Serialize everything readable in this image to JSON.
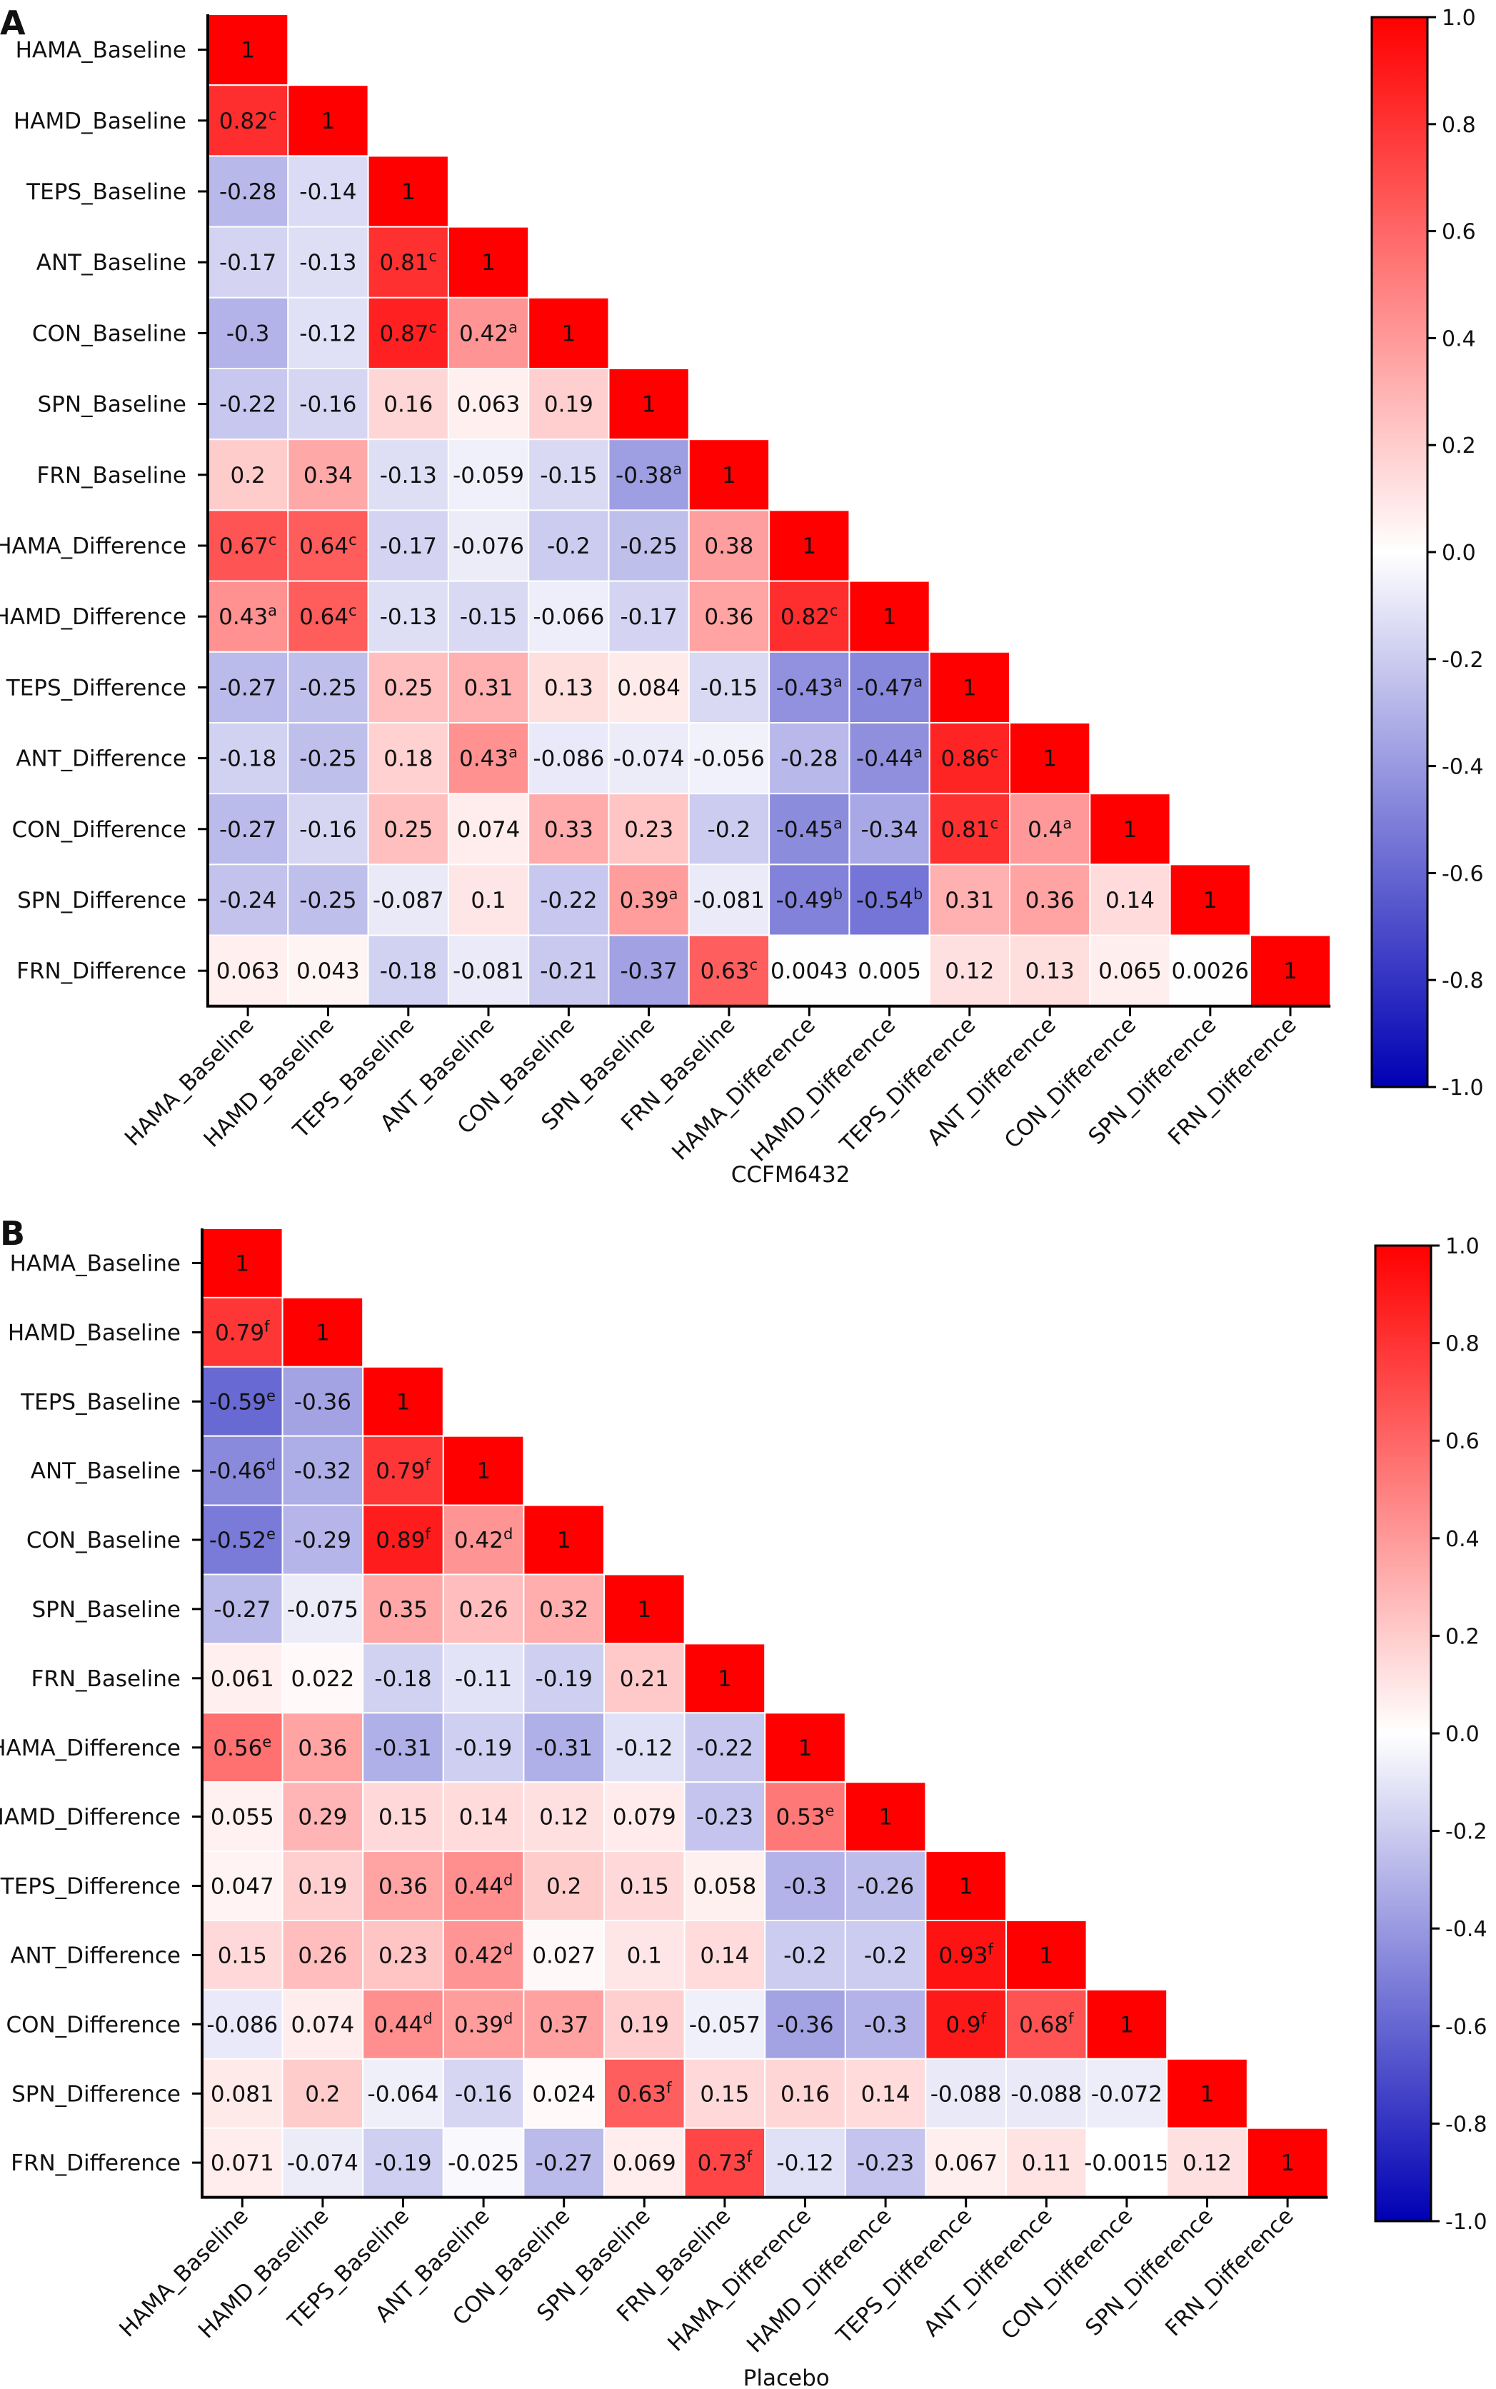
{
  "chart_data": [
    {
      "type": "heatmap",
      "panel_label": "A",
      "xlabel": "CCFM6432",
      "variables": [
        "HAMA_Baseline",
        "HAMD_Baseline",
        "TEPS_Baseline",
        "ANT_Baseline",
        "CON_Baseline",
        "SPN_Baseline",
        "FRN_Baseline",
        "HAMA_Difference",
        "HAMD_Difference",
        "TEPS_Difference",
        "ANT_Difference",
        "CON_Difference",
        "SPN_Difference",
        "FRN_Difference"
      ],
      "values": [
        [
          1
        ],
        [
          0.82,
          1
        ],
        [
          -0.28,
          -0.14,
          1
        ],
        [
          -0.17,
          -0.13,
          0.81,
          1
        ],
        [
          -0.3,
          -0.12,
          0.87,
          0.42,
          1
        ],
        [
          -0.22,
          -0.16,
          0.16,
          0.063,
          0.19,
          1
        ],
        [
          0.2,
          0.34,
          -0.13,
          -0.059,
          -0.15,
          -0.38,
          1
        ],
        [
          0.67,
          0.64,
          -0.17,
          -0.076,
          -0.2,
          -0.25,
          0.38,
          1
        ],
        [
          0.43,
          0.64,
          -0.13,
          -0.15,
          -0.066,
          -0.17,
          0.36,
          0.82,
          1
        ],
        [
          -0.27,
          -0.25,
          0.25,
          0.31,
          0.13,
          0.084,
          -0.15,
          -0.43,
          -0.47,
          1
        ],
        [
          -0.18,
          -0.25,
          0.18,
          0.43,
          -0.086,
          -0.074,
          -0.056,
          -0.28,
          -0.44,
          0.86,
          1
        ],
        [
          -0.27,
          -0.16,
          0.25,
          0.074,
          0.33,
          0.23,
          -0.2,
          -0.45,
          -0.34,
          0.81,
          0.4,
          1
        ],
        [
          -0.24,
          -0.25,
          -0.087,
          0.1,
          -0.22,
          0.39,
          -0.081,
          -0.49,
          -0.54,
          0.31,
          0.36,
          0.14,
          1
        ],
        [
          0.063,
          0.043,
          -0.18,
          -0.081,
          -0.21,
          -0.37,
          0.63,
          0.0043,
          0.005,
          0.12,
          0.13,
          0.065,
          0.0026,
          1
        ]
      ],
      "labels": [
        [
          "1"
        ],
        [
          "0.82",
          "1"
        ],
        [
          "-0.28",
          "-0.14",
          "1"
        ],
        [
          "-0.17",
          "-0.13",
          "0.81",
          "1"
        ],
        [
          "-0.3",
          "-0.12",
          "0.87",
          "0.42",
          "1"
        ],
        [
          "-0.22",
          "-0.16",
          "0.16",
          "0.063",
          "0.19",
          "1"
        ],
        [
          "0.2",
          "0.34",
          "-0.13",
          "-0.059",
          "-0.15",
          "-0.38",
          "1"
        ],
        [
          "0.67",
          "0.64",
          "-0.17",
          "-0.076",
          "-0.2",
          "-0.25",
          "0.38",
          "1"
        ],
        [
          "0.43",
          "0.64",
          "-0.13",
          "-0.15",
          "-0.066",
          "-0.17",
          "0.36",
          "0.82",
          "1"
        ],
        [
          "-0.27",
          "-0.25",
          "0.25",
          "0.31",
          "0.13",
          "0.084",
          "-0.15",
          "-0.43",
          "-0.47",
          "1"
        ],
        [
          "-0.18",
          "-0.25",
          "0.18",
          "0.43",
          "-0.086",
          "-0.074",
          "-0.056",
          "-0.28",
          "-0.44",
          "0.86",
          "1"
        ],
        [
          "-0.27",
          "-0.16",
          "0.25",
          "0.074",
          "0.33",
          "0.23",
          "-0.2",
          "-0.45",
          "-0.34",
          "0.81",
          "0.4",
          "1"
        ],
        [
          "-0.24",
          "-0.25",
          "-0.087",
          "0.1",
          "-0.22",
          "0.39",
          "-0.081",
          "-0.49",
          "-0.54",
          "0.31",
          "0.36",
          "0.14",
          "1"
        ],
        [
          "0.063",
          "0.043",
          "-0.18",
          "-0.081",
          "-0.21",
          "-0.37",
          "0.63",
          "0.0043",
          "0.005",
          "0.12",
          "0.13",
          "0.065",
          "0.0026",
          "1"
        ]
      ],
      "superscripts": [
        [
          ""
        ],
        [
          "c",
          ""
        ],
        [
          "",
          "",
          ""
        ],
        [
          "",
          "",
          "c",
          ""
        ],
        [
          "",
          "",
          "c",
          "a",
          ""
        ],
        [
          "",
          "",
          "",
          "",
          "",
          ""
        ],
        [
          "",
          "",
          "",
          "",
          "",
          "a",
          ""
        ],
        [
          "c",
          "c",
          "",
          "",
          "",
          "",
          "",
          ""
        ],
        [
          "a",
          "c",
          "",
          "",
          "",
          "",
          "",
          "c",
          ""
        ],
        [
          "",
          "",
          "",
          "",
          "",
          "",
          "",
          "a",
          "a",
          ""
        ],
        [
          "",
          "",
          "",
          "a",
          "",
          "",
          "",
          "",
          "a",
          "c",
          ""
        ],
        [
          "",
          "",
          "",
          "",
          "",
          "",
          "",
          "a",
          "",
          "c",
          "a",
          ""
        ],
        [
          "",
          "",
          "",
          "",
          "",
          "a",
          "",
          "b",
          "b",
          "",
          "",
          "",
          ""
        ],
        [
          "",
          "",
          "",
          "",
          "",
          "",
          "c",
          "",
          "",
          "",
          "",
          "",
          "",
          ""
        ]
      ],
      "colorbar": {
        "min": -1.0,
        "max": 1.0,
        "ticks": [
          "1.0",
          "0.8",
          "0.6",
          "0.4",
          "0.2",
          "0.0",
          "-0.2",
          "-0.4",
          "-0.6",
          "-0.8",
          "-1.0"
        ],
        "low_color": "#0000b4",
        "mid_color": "#ffffff",
        "high_color": "#ff0000"
      }
    },
    {
      "type": "heatmap",
      "panel_label": "B",
      "xlabel": "Placebo",
      "variables": [
        "HAMA_Baseline",
        "HAMD_Baseline",
        "TEPS_Baseline",
        "ANT_Baseline",
        "CON_Baseline",
        "SPN_Baseline",
        "FRN_Baseline",
        "HAMA_Difference",
        "HAMD_Difference",
        "TEPS_Difference",
        "ANT_Difference",
        "CON_Difference",
        "SPN_Difference",
        "FRN_Difference"
      ],
      "values": [
        [
          1
        ],
        [
          0.79,
          1
        ],
        [
          -0.59,
          -0.36,
          1
        ],
        [
          -0.46,
          -0.32,
          0.79,
          1
        ],
        [
          -0.52,
          -0.29,
          0.89,
          0.42,
          1
        ],
        [
          -0.27,
          -0.075,
          0.35,
          0.26,
          0.32,
          1
        ],
        [
          0.061,
          0.022,
          -0.18,
          -0.11,
          -0.19,
          0.21,
          1
        ],
        [
          0.56,
          0.36,
          -0.31,
          -0.19,
          -0.31,
          -0.12,
          -0.22,
          1
        ],
        [
          0.055,
          0.29,
          0.15,
          0.14,
          0.12,
          0.079,
          -0.23,
          0.53,
          1
        ],
        [
          0.047,
          0.19,
          0.36,
          0.44,
          0.2,
          0.15,
          0.058,
          -0.3,
          -0.26,
          1
        ],
        [
          0.15,
          0.26,
          0.23,
          0.42,
          0.027,
          0.1,
          0.14,
          -0.2,
          -0.2,
          0.93,
          1
        ],
        [
          -0.086,
          0.074,
          0.44,
          0.39,
          0.37,
          0.19,
          -0.057,
          -0.36,
          -0.3,
          0.9,
          0.68,
          1
        ],
        [
          0.081,
          0.2,
          -0.064,
          -0.16,
          0.024,
          0.63,
          0.15,
          0.16,
          0.14,
          -0.088,
          -0.088,
          -0.072,
          1
        ],
        [
          0.071,
          -0.074,
          -0.19,
          -0.025,
          -0.27,
          0.069,
          0.73,
          -0.12,
          -0.23,
          0.067,
          0.11,
          -0.0015,
          0.12,
          1
        ]
      ],
      "labels": [
        [
          "1"
        ],
        [
          "0.79",
          "1"
        ],
        [
          "-0.59",
          "-0.36",
          "1"
        ],
        [
          "-0.46",
          "-0.32",
          "0.79",
          "1"
        ],
        [
          "-0.52",
          "-0.29",
          "0.89",
          "0.42",
          "1"
        ],
        [
          "-0.27",
          "-0.075",
          "0.35",
          "0.26",
          "0.32",
          "1"
        ],
        [
          "0.061",
          "0.022",
          "-0.18",
          "-0.11",
          "-0.19",
          "0.21",
          "1"
        ],
        [
          "0.56",
          "0.36",
          "-0.31",
          "-0.19",
          "-0.31",
          "-0.12",
          "-0.22",
          "1"
        ],
        [
          "0.055",
          "0.29",
          "0.15",
          "0.14",
          "0.12",
          "0.079",
          "-0.23",
          "0.53",
          "1"
        ],
        [
          "0.047",
          "0.19",
          "0.36",
          "0.44",
          "0.2",
          "0.15",
          "0.058",
          "-0.3",
          "-0.26",
          "1"
        ],
        [
          "0.15",
          "0.26",
          "0.23",
          "0.42",
          "0.027",
          "0.1",
          "0.14",
          "-0.2",
          "-0.2",
          "0.93",
          "1"
        ],
        [
          "-0.086",
          "0.074",
          "0.44",
          "0.39",
          "0.37",
          "0.19",
          "-0.057",
          "-0.36",
          "-0.3",
          "0.9",
          "0.68",
          "1"
        ],
        [
          "0.081",
          "0.2",
          "-0.064",
          "-0.16",
          "0.024",
          "0.63",
          "0.15",
          "0.16",
          "0.14",
          "-0.088",
          "-0.088",
          "-0.072",
          "1"
        ],
        [
          "0.071",
          "-0.074",
          "-0.19",
          "-0.025",
          "-0.27",
          "0.069",
          "0.73",
          "-0.12",
          "-0.23",
          "0.067",
          "0.11",
          "-0.0015",
          "0.12",
          "1"
        ]
      ],
      "superscripts": [
        [
          ""
        ],
        [
          "f",
          ""
        ],
        [
          "e",
          "",
          ""
        ],
        [
          "d",
          "",
          "f",
          ""
        ],
        [
          "e",
          "",
          "f",
          "d",
          ""
        ],
        [
          "",
          "",
          "",
          "",
          "",
          ""
        ],
        [
          "",
          "",
          "",
          "",
          "",
          "",
          ""
        ],
        [
          "e",
          "",
          "",
          "",
          "",
          "",
          "",
          ""
        ],
        [
          "",
          "",
          "",
          "",
          "",
          "",
          "",
          "e",
          ""
        ],
        [
          "",
          "",
          "",
          "d",
          "",
          "",
          "",
          "",
          "",
          ""
        ],
        [
          "",
          "",
          "",
          "d",
          "",
          "",
          "",
          "",
          "",
          "f",
          ""
        ],
        [
          "",
          "",
          "d",
          "d",
          "",
          "",
          "",
          "",
          "",
          "f",
          "f",
          ""
        ],
        [
          "",
          "",
          "",
          "",
          "",
          "f",
          "",
          "",
          "",
          "",
          "",
          "",
          ""
        ],
        [
          "",
          "",
          "",
          "",
          "",
          "",
          "f",
          "",
          "",
          "",
          "",
          "",
          "",
          ""
        ]
      ],
      "colorbar": {
        "min": -1.0,
        "max": 1.0,
        "ticks": [
          "1.0",
          "0.8",
          "0.6",
          "0.4",
          "0.2",
          "0.0",
          "-0.2",
          "-0.4",
          "-0.6",
          "-0.8",
          "-1.0"
        ],
        "low_color": "#0000b4",
        "mid_color": "#ffffff",
        "high_color": "#ff0000"
      }
    }
  ]
}
